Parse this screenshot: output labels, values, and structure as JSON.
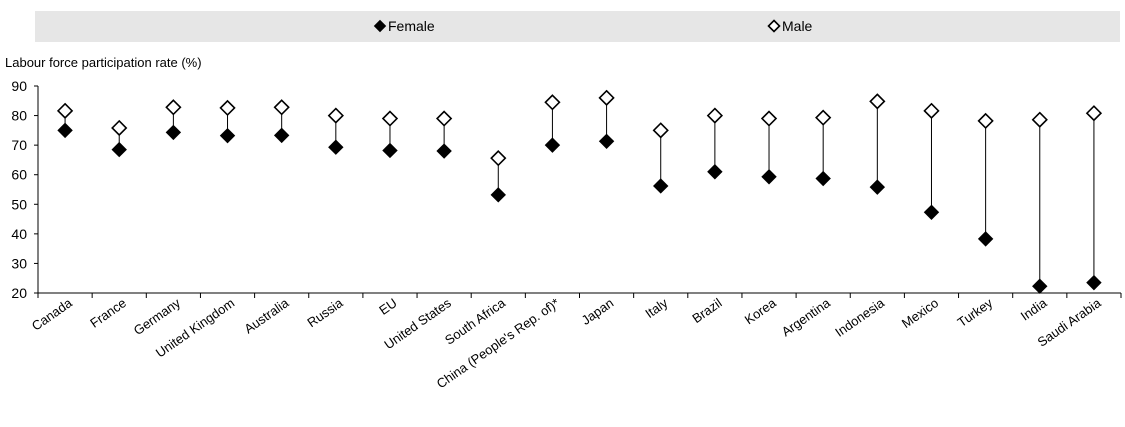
{
  "chart_data": {
    "type": "scatter",
    "ylabel": "Labour force participation rate (%)",
    "ylim": [
      20,
      90
    ],
    "yticks": [
      20,
      30,
      40,
      50,
      60,
      70,
      80,
      90
    ],
    "legend_position": "top",
    "grid": false,
    "categories": [
      "Canada",
      "France",
      "Germany",
      "United Kingdom",
      "Australia",
      "Russia",
      "EU",
      "United States",
      "South Africa",
      "China (People's Rep. of)*",
      "Japan",
      "Italy",
      "Brazil",
      "Korea",
      "Argentina",
      "Indonesia",
      "Mexico",
      "Turkey",
      "India",
      "Saudi Arabia"
    ],
    "series": [
      {
        "name": "Female",
        "marker": "filled-diamond",
        "color": "#000000",
        "values": [
          75.0,
          68.5,
          74.3,
          73.2,
          73.3,
          69.3,
          68.2,
          68.0,
          53.2,
          70.0,
          71.3,
          56.2,
          61.0,
          59.3,
          58.7,
          55.8,
          47.3,
          38.3,
          22.3,
          23.5
        ]
      },
      {
        "name": "Male",
        "marker": "open-diamond",
        "color": "#000000",
        "values": [
          81.6,
          75.8,
          82.8,
          82.6,
          82.8,
          80.0,
          79.0,
          79.0,
          65.6,
          84.5,
          86.0,
          75.0,
          80.0,
          79.0,
          79.3,
          84.8,
          81.6,
          78.2,
          78.6,
          80.8
        ]
      }
    ]
  },
  "colors": {
    "legend_band": "#e6e6e6",
    "axis": "#000000",
    "stem": "#000000"
  }
}
